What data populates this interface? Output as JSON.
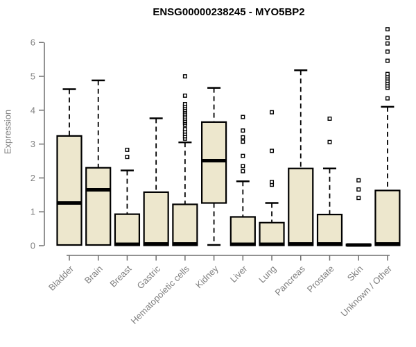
{
  "chart_data": {
    "type": "boxplot",
    "title": "ENSG00000238245 - MYO5BP2",
    "ylabel": "Expression",
    "xlabel": "",
    "ylim": [
      0,
      6.5
    ],
    "yticks": [
      0,
      1,
      2,
      3,
      4,
      5,
      6
    ],
    "grid": false,
    "legend": "none",
    "categories": [
      "Bladder",
      "Brain",
      "Breast",
      "Gastric",
      "Hematopoietic cells",
      "Kidney",
      "Liver",
      "Lung",
      "Pancreas",
      "Prostate",
      "Skin",
      "Unknown / Other"
    ],
    "boxes": [
      {
        "category": "Bladder",
        "low": 0,
        "q1": 0.02,
        "median": 1.26,
        "q3": 3.24,
        "high": 4.62,
        "outliers": []
      },
      {
        "category": "Brain",
        "low": 0,
        "q1": 0.02,
        "median": 1.65,
        "q3": 2.3,
        "high": 4.88,
        "outliers": []
      },
      {
        "category": "Breast",
        "low": 0,
        "q1": 0.01,
        "median": 0.04,
        "q3": 0.93,
        "high": 2.22,
        "outliers": [
          2.62,
          2.83
        ]
      },
      {
        "category": "Gastric",
        "low": 0,
        "q1": 0.01,
        "median": 0.05,
        "q3": 1.58,
        "high": 3.76,
        "outliers": []
      },
      {
        "category": "Hematopoietic cells",
        "low": 0,
        "q1": 0.01,
        "median": 0.05,
        "q3": 1.22,
        "high": 3.05,
        "outliers": [
          3.16,
          3.23,
          3.3,
          3.37,
          3.44,
          3.57,
          3.63,
          3.68,
          3.74,
          3.79,
          3.85,
          3.9,
          3.96,
          4.01,
          4.07,
          4.12,
          4.18,
          4.43,
          5.0
        ]
      },
      {
        "category": "Kidney",
        "low": 0.02,
        "q1": 1.26,
        "median": 2.51,
        "q3": 3.65,
        "high": 4.66,
        "outliers": []
      },
      {
        "category": "Liver",
        "low": 0,
        "q1": 0.01,
        "median": 0.04,
        "q3": 0.85,
        "high": 1.9,
        "outliers": [
          2.2,
          2.35,
          2.65,
          3.07,
          3.2,
          3.4,
          3.8
        ]
      },
      {
        "category": "Lung",
        "low": 0,
        "q1": 0.01,
        "median": 0.04,
        "q3": 0.68,
        "high": 1.26,
        "outliers": [
          1.8,
          1.88,
          2.8,
          3.94
        ]
      },
      {
        "category": "Pancreas",
        "low": 0,
        "q1": 0.01,
        "median": 0.05,
        "q3": 2.28,
        "high": 5.18,
        "outliers": []
      },
      {
        "category": "Prostate",
        "low": 0,
        "q1": 0.01,
        "median": 0.05,
        "q3": 0.92,
        "high": 2.28,
        "outliers": [
          3.06,
          3.75
        ]
      },
      {
        "category": "Skin",
        "low": 0,
        "q1": 0,
        "median": 0.02,
        "q3": 0.04,
        "high": 0.04,
        "outliers": [
          1.41,
          1.66,
          1.93
        ]
      },
      {
        "category": "Unknown / Other",
        "low": 0,
        "q1": 0.01,
        "median": 0.05,
        "q3": 1.63,
        "high": 4.1,
        "outliers": [
          4.35,
          4.66,
          4.73,
          4.8,
          4.87,
          4.94,
          5.0,
          5.07,
          5.46,
          5.73,
          5.97,
          6.14,
          6.39
        ]
      }
    ],
    "colors": {
      "box_fill": "#EDE7CD",
      "box_border": "#000000",
      "median": "#000000",
      "whisker": "#000000",
      "axis": "#6e6e6e",
      "tick_label": "#7f7f7f",
      "title": "#000000",
      "background": "#ffffff"
    }
  }
}
